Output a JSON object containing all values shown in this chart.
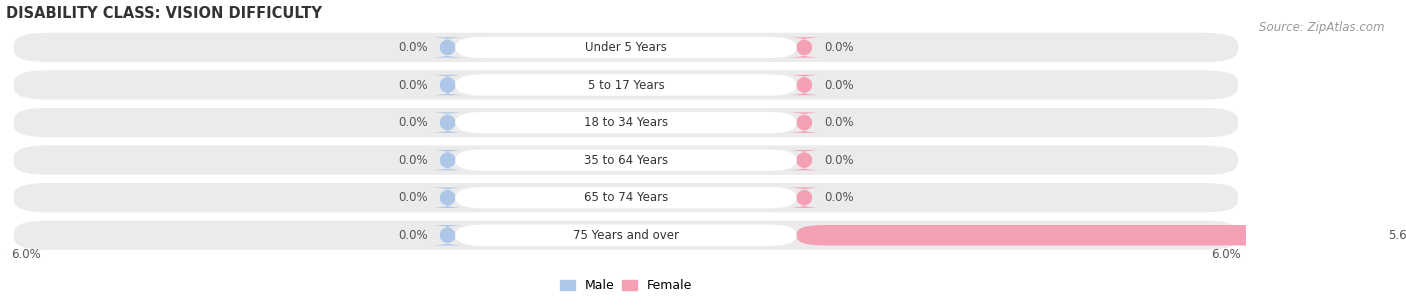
{
  "title": "DISABILITY CLASS: VISION DIFFICULTY",
  "source_text": "Source: ZipAtlas.com",
  "categories": [
    "Under 5 Years",
    "5 to 17 Years",
    "18 to 34 Years",
    "35 to 64 Years",
    "65 to 74 Years",
    "75 Years and over"
  ],
  "male_values": [
    0.0,
    0.0,
    0.0,
    0.0,
    0.0,
    0.0
  ],
  "female_values": [
    0.0,
    0.0,
    0.0,
    0.0,
    0.0,
    5.6
  ],
  "male_color": "#aec6e8",
  "female_color": "#f4a0b5",
  "bar_bg_color": "#ebebeb",
  "label_pill_color": "#ffffff",
  "xlim": 6.0,
  "legend_male": "Male",
  "legend_female": "Female",
  "title_fontsize": 10.5,
  "source_fontsize": 8.5,
  "value_fontsize": 8.5,
  "category_fontsize": 8.5,
  "bar_height": 0.68,
  "stub_size": 1.5,
  "background_color": "#ffffff",
  "row_bg_color": "#f5f5f5",
  "separator_color": "#e0e0e0"
}
